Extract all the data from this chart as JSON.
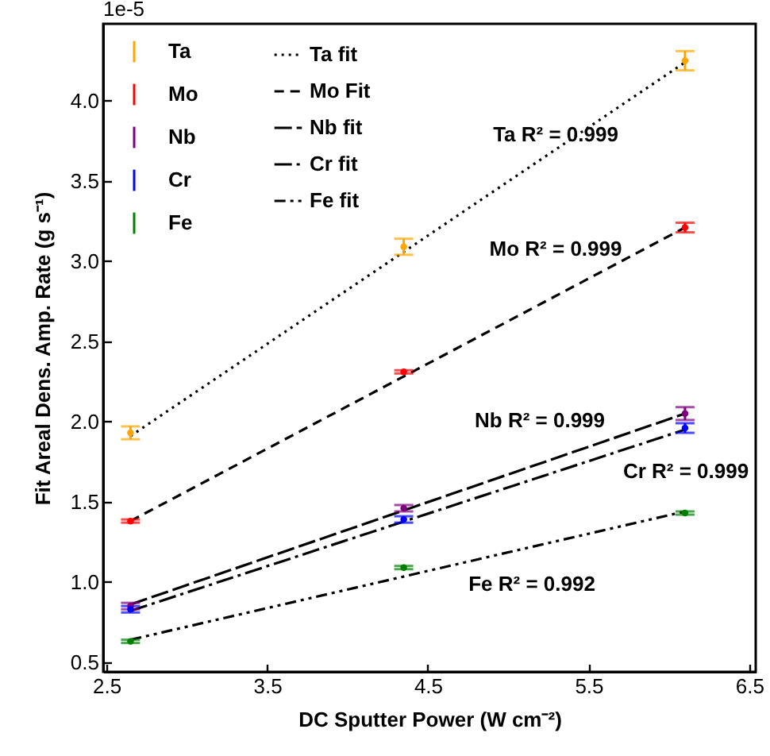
{
  "chart_data": {
    "type": "line",
    "xlabel": "DC Sputter Power (W cm⁻²)",
    "ylabel": "Fit Areal Dens. Amp. Rate (g s⁻¹)",
    "xlim": [
      2.48,
      6.54
    ],
    "xticks": [
      2.5,
      3.5,
      4.5,
      5.5,
      6.5
    ],
    "ylim": [
      0.44,
      4.48
    ],
    "yticks": [
      0.5,
      {
        "value": 1,
        "label": "1.0"
      },
      1.5,
      {
        "value": 2,
        "label": "2.0"
      },
      2.5,
      {
        "value": 3,
        "label": "3.0"
      },
      3.5,
      {
        "value": 4,
        "label": "4.0"
      }
    ],
    "legend": "top left",
    "grid": false,
    "series": [
      {
        "name": "Ta",
        "type": "scatter",
        "marker": "circle",
        "color": "#ffa500",
        "x": [
          2.65,
          4.35,
          6.1
        ],
        "values": [
          1.93,
          3.09,
          4.25
        ],
        "errors": [
          0.04,
          0.05,
          0.06
        ]
      },
      {
        "name": "Mo",
        "type": "scatter",
        "marker": "circle",
        "color": "#ff0000",
        "x": [
          2.65,
          4.35,
          6.1
        ],
        "values": [
          1.38,
          2.31,
          3.21
        ],
        "errors": [
          0.01,
          0.01,
          0.03
        ]
      },
      {
        "name": "Nb",
        "type": "scatter",
        "marker": "circle",
        "color": "#800080",
        "x": [
          2.65,
          4.35,
          6.1
        ],
        "values": [
          0.85,
          1.46,
          2.05
        ],
        "errors": [
          0.02,
          0.02,
          0.04
        ]
      },
      {
        "name": "Cr",
        "type": "scatter",
        "marker": "circle",
        "color": "#0000ff",
        "x": [
          2.65,
          4.35,
          6.1
        ],
        "values": [
          0.83,
          1.39,
          1.96
        ],
        "errors": [
          0.02,
          0.02,
          0.03
        ]
      },
      {
        "name": "Fe",
        "type": "scatter",
        "marker": "circle",
        "color": "#008000",
        "x": [
          2.65,
          4.35,
          6.1
        ],
        "values": [
          0.63,
          1.09,
          1.43
        ],
        "errors": [
          0.01,
          0.01,
          0.01
        ]
      },
      {
        "name": "Ta fit",
        "type": "line",
        "color": "#000000",
        "line_style": "dotted",
        "marker": "none",
        "x": [
          2.65,
          6.1
        ],
        "values": [
          1.91,
          4.24
        ]
      },
      {
        "name": "Mo Fit",
        "type": "line",
        "color": "#000000",
        "line_style": "dashed",
        "marker": "none",
        "x": [
          2.65,
          6.1
        ],
        "values": [
          1.38,
          3.21
        ]
      },
      {
        "name": "Nb fit",
        "type": "line",
        "color": "#000000",
        "line_style": "longdash",
        "marker": "none",
        "x": [
          2.65,
          6.1
        ],
        "values": [
          0.86,
          2.05
        ]
      },
      {
        "name": "Cr fit",
        "type": "line",
        "color": "#000000",
        "line_style": "dashdot",
        "marker": "none",
        "x": [
          2.65,
          6.1
        ],
        "values": [
          0.82,
          1.95
        ]
      },
      {
        "name": "Fe fit",
        "type": "line",
        "color": "#000000",
        "line_style": "dashdotdot",
        "marker": "none",
        "x": [
          2.65,
          6.1
        ],
        "values": [
          0.64,
          1.44
        ]
      }
    ],
    "annotations": [
      "1e-5",
      "Ta R² = 0.999",
      "Mo R² = 0.999",
      "Nb R² = 0.999",
      "Cr R² = 0.999",
      "Fe R² = 0.992"
    ]
  }
}
